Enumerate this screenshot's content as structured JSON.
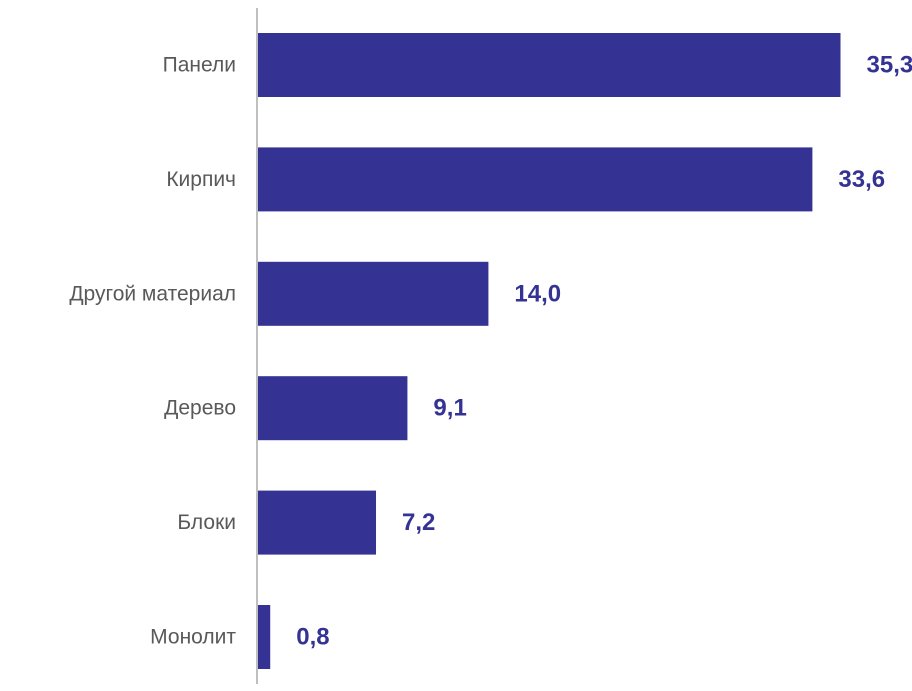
{
  "chart_data": {
    "type": "bar",
    "orientation": "horizontal",
    "categories": [
      "Панели",
      "Кирпич",
      "Другой материал",
      "Дерево",
      "Блоки",
      "Монолит"
    ],
    "values": [
      35.3,
      33.6,
      14.0,
      9.1,
      7.2,
      0.8
    ],
    "value_labels": [
      "35,3",
      "33,6",
      "14,0",
      "9,1",
      "7,2",
      "0,8"
    ],
    "title": "",
    "xlabel": "",
    "ylabel": "",
    "xlim": [
      0,
      36
    ],
    "grid": false,
    "legend": "none",
    "colors": {
      "bar": "#343293",
      "value_label": "#343293",
      "category_label": "#595959",
      "axis": "#bfbfbf"
    }
  }
}
